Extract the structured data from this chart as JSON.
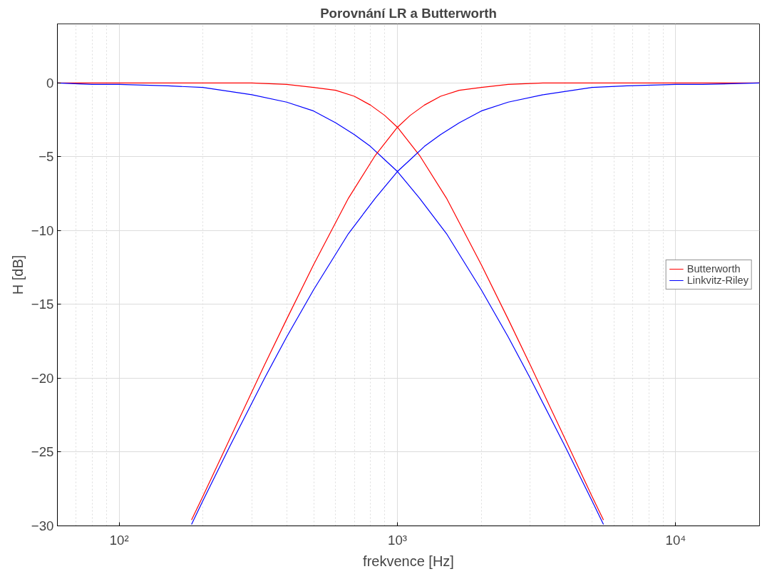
{
  "chart_data": {
    "type": "line",
    "title": "Porovnání LR a Butterworth",
    "xlabel": "frekvence [Hz]",
    "ylabel": "H [dB]",
    "log": "x",
    "grid": true,
    "legend": "right",
    "line_style": "solid",
    "marker": "none",
    "xlim": [
      60,
      20000
    ],
    "xticks": [
      {
        "value": 100,
        "label": "10²"
      },
      {
        "value": 1000,
        "label": "10³"
      },
      {
        "value": 10000,
        "label": "10⁴"
      }
    ],
    "ylim": [
      -30,
      4
    ],
    "yticks": [
      -30,
      -25,
      -20,
      -15,
      -10,
      -5,
      0
    ],
    "series": [
      {
        "name": "Butterworth",
        "color": "#ff0000",
        "x": [
          60,
          100,
          200,
          300,
          400,
          500,
          600,
          700,
          800,
          900,
          1000,
          1200,
          1500,
          2000,
          2500,
          3000,
          4000,
          5000,
          5500
        ],
        "values": [
          0.0,
          0.0,
          0.0,
          0.0,
          -0.1,
          -0.3,
          -0.5,
          -0.9,
          -1.5,
          -2.2,
          -3.0,
          -4.9,
          -7.8,
          -12.3,
          -16.0,
          -19.1,
          -24.1,
          -28.0,
          -29.6
        ]
      },
      {
        "name": "Linkvitz-Riley",
        "color": "#0000ff",
        "x": [
          60,
          80,
          100,
          150,
          200,
          300,
          400,
          500,
          600,
          700,
          800,
          900,
          1000,
          1200,
          1500,
          2000,
          2500,
          3000,
          4000,
          5000,
          5500
        ],
        "values": [
          0.0,
          -0.1,
          -0.1,
          -0.2,
          -0.3,
          -0.8,
          -1.3,
          -1.9,
          -2.7,
          -3.5,
          -4.3,
          -5.2,
          -6.0,
          -7.8,
          -10.2,
          -14.0,
          -17.2,
          -20.0,
          -24.6,
          -28.3,
          -29.9
        ]
      },
      {
        "color": "#ff0000",
        "x": [
          182,
          200,
          250,
          333,
          400,
          500,
          667,
          833,
          1000,
          1111,
          1250,
          1429,
          1667,
          2000,
          2500,
          3333,
          5000,
          10000,
          20000
        ],
        "values": [
          -29.6,
          -28.0,
          -24.1,
          -19.1,
          -16.0,
          -12.3,
          -7.8,
          -4.9,
          -3.0,
          -2.2,
          -1.5,
          -0.9,
          -0.5,
          -0.3,
          -0.1,
          0.0,
          0.0,
          0.0,
          0.0
        ]
      },
      {
        "color": "#0000ff",
        "x": [
          182,
          200,
          250,
          333,
          400,
          500,
          667,
          833,
          1000,
          1111,
          1250,
          1429,
          1667,
          2000,
          2500,
          3333,
          5000,
          6667,
          10000,
          12500,
          20000
        ],
        "values": [
          -29.9,
          -28.3,
          -24.6,
          -20.0,
          -17.2,
          -14.0,
          -10.2,
          -7.8,
          -6.0,
          -5.2,
          -4.3,
          -3.5,
          -2.7,
          -1.9,
          -1.3,
          -0.8,
          -0.3,
          -0.2,
          -0.1,
          -0.1,
          0.0
        ]
      }
    ]
  }
}
